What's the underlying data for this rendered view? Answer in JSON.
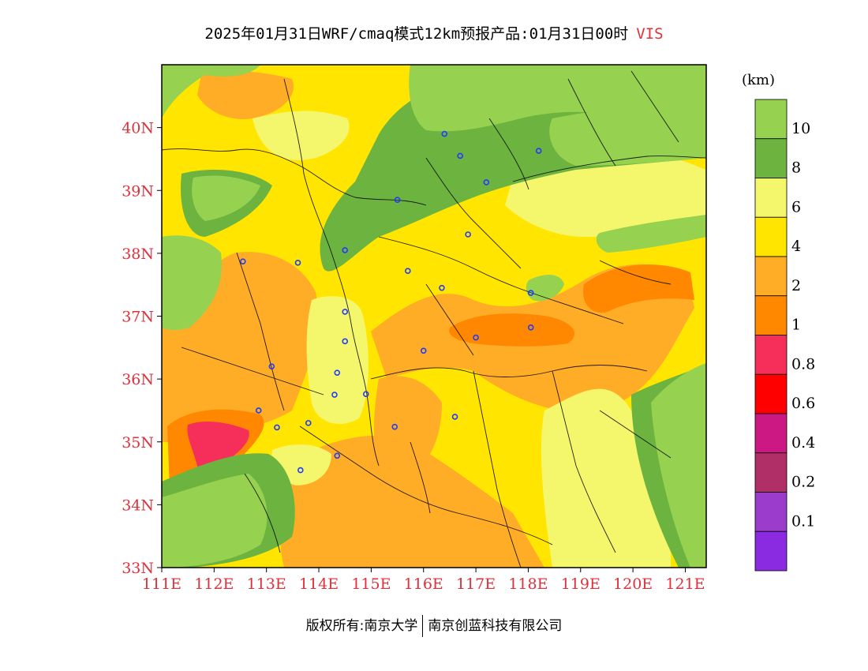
{
  "title": {
    "main": "2025年01月31日WRF/cmaq模式12km预报产品:01月31日00时",
    "variable": "VIS"
  },
  "map": {
    "lon_range": [
      111,
      121.4
    ],
    "lat_range": [
      33,
      41
    ],
    "lon_ticks": [
      "111E",
      "112E",
      "113E",
      "114E",
      "115E",
      "116E",
      "117E",
      "118E",
      "119E",
      "120E",
      "121E"
    ],
    "lat_ticks": [
      "33N",
      "34N",
      "35N",
      "36N",
      "37N",
      "38N",
      "39N",
      "40N"
    ],
    "city_markers": [
      [
        116.4,
        39.9
      ],
      [
        116.7,
        39.55
      ],
      [
        117.2,
        39.13
      ],
      [
        118.2,
        39.63
      ],
      [
        115.5,
        38.85
      ],
      [
        116.85,
        38.3
      ],
      [
        114.5,
        38.05
      ],
      [
        112.55,
        37.87
      ],
      [
        113.6,
        37.85
      ],
      [
        115.7,
        37.72
      ],
      [
        116.35,
        37.45
      ],
      [
        118.05,
        37.37
      ],
      [
        114.5,
        37.07
      ],
      [
        118.05,
        36.82
      ],
      [
        117.0,
        36.66
      ],
      [
        114.5,
        36.6
      ],
      [
        116.0,
        36.45
      ],
      [
        113.1,
        36.2
      ],
      [
        114.35,
        36.1
      ],
      [
        114.3,
        35.75
      ],
      [
        114.9,
        35.76
      ],
      [
        112.85,
        35.5
      ],
      [
        113.2,
        35.23
      ],
      [
        113.8,
        35.3
      ],
      [
        115.45,
        35.24
      ],
      [
        116.6,
        35.4
      ],
      [
        114.35,
        34.78
      ],
      [
        113.65,
        34.55
      ]
    ]
  },
  "legend": {
    "unit": "(km)",
    "levels": [
      "10",
      "8",
      "6",
      "4",
      "2",
      "1",
      "0.8",
      "0.6",
      "0.4",
      "0.2",
      "0.1"
    ],
    "colors": [
      "#96d24f",
      "#6db33f",
      "#f4f66b",
      "#ffe500",
      "#ffac26",
      "#ff8800",
      "#f52f5a",
      "#ff0000",
      "#cc1882",
      "#b02f66",
      "#9b3ccc",
      "#8a2be2"
    ]
  },
  "footer": {
    "left": "版权所有:南京大学",
    "right": "南京创蓝科技有限公司"
  }
}
